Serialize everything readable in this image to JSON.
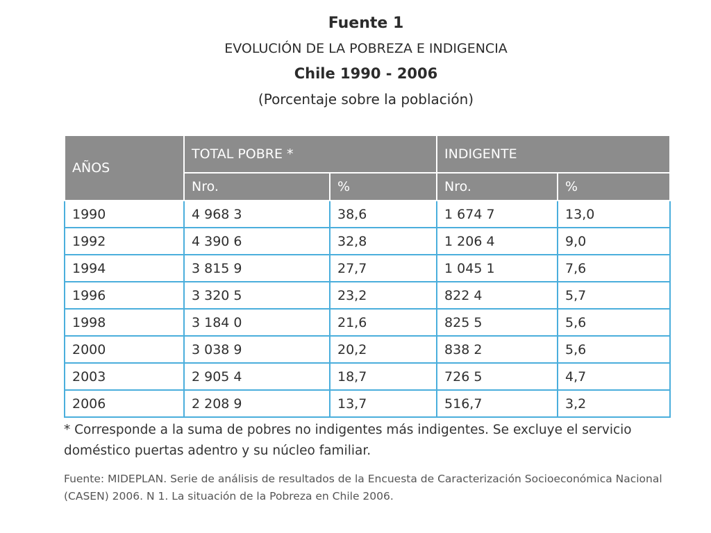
{
  "header": {
    "title": "Fuente 1",
    "subtitle": "EVOLUCIÓN DE LA POBREZA E INDIGENCIA",
    "region": "Chile 1990 - 2006",
    "unit": "(Porcentaje sobre la población)"
  },
  "table": {
    "col_years": "AÑOS",
    "group_total": "TOTAL POBRE *",
    "group_indigente": "INDIGENTE",
    "sub_nro": "Nro.",
    "sub_pct": "%",
    "rows": [
      {
        "year": "1990",
        "total_nro": "4 968 3",
        "total_pct": "38,6",
        "ind_nro": "1 674 7",
        "ind_pct": "13,0"
      },
      {
        "year": "1992",
        "total_nro": "4 390 6",
        "total_pct": "32,8",
        "ind_nro": "1 206 4",
        "ind_pct": "9,0"
      },
      {
        "year": "1994",
        "total_nro": "3 815 9",
        "total_pct": "27,7",
        "ind_nro": "1 045 1",
        "ind_pct": "7,6"
      },
      {
        "year": "1996",
        "total_nro": "3 320 5",
        "total_pct": "23,2",
        "ind_nro": "822 4",
        "ind_pct": "5,7"
      },
      {
        "year": "1998",
        "total_nro": "3 184 0",
        "total_pct": "21,6",
        "ind_nro": "825 5",
        "ind_pct": "5,6"
      },
      {
        "year": "2000",
        "total_nro": "3 038 9",
        "total_pct": "20,2",
        "ind_nro": "838 2",
        "ind_pct": "5,6"
      },
      {
        "year": "2003",
        "total_nro": "2 905 4",
        "total_pct": "18,7",
        "ind_nro": "726 5",
        "ind_pct": "4,7"
      },
      {
        "year": "2006",
        "total_nro": "2 208 9",
        "total_pct": "13,7",
        "ind_nro": "516,7",
        "ind_pct": "3,2"
      }
    ]
  },
  "footnote": "* Corresponde a la suma de pobres no indigentes más indigentes. Se excluye el servicio doméstico puertas adentro y su núcleo familiar.",
  "source": "Fuente: MIDEPLAN. Serie de análisis de resultados de la Encuesta de Caracterización Socioeconómica Nacional (CASEN) 2006. N 1. La situación de la Pobreza en Chile 2006.",
  "colors": {
    "header_bg": "#8c8c8c",
    "grid_line": "#4aaedc"
  }
}
